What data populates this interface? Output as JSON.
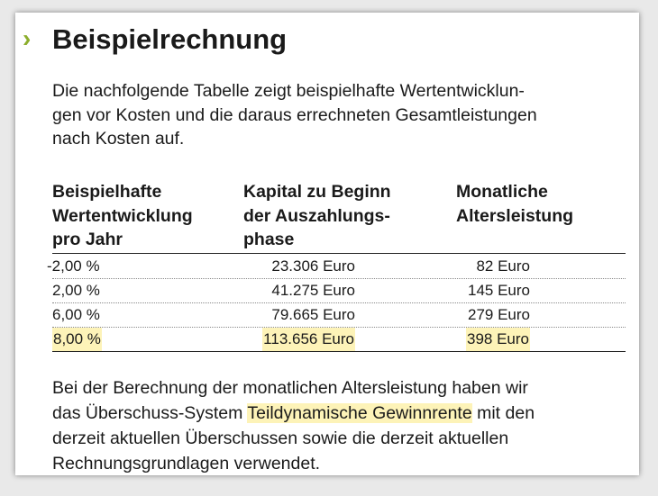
{
  "heading": {
    "chevron": "›",
    "title": "Beispielrechnung"
  },
  "intro": [
    "Die nachfolgende Tabelle zeigt beispielhafte Wertentwicklun-",
    "gen vor Kosten und die daraus errechneten Gesamtleistungen",
    "nach Kosten auf."
  ],
  "table": {
    "headers": [
      [
        "Beispielhafte",
        "Wertentwicklung",
        "pro Jahr"
      ],
      [
        "Kapital zu Beginn",
        "der Auszahlungs-",
        "phase"
      ],
      [
        "Monatliche",
        "Altersleistung"
      ]
    ],
    "rows": [
      {
        "rate": "-2,00 %",
        "capital": "23.306 Euro",
        "pension": "82 Euro",
        "highlighted": false
      },
      {
        "rate": "2,00 %",
        "capital": "41.275 Euro",
        "pension": "145 Euro",
        "highlighted": false
      },
      {
        "rate": "6,00 %",
        "capital": "79.665 Euro",
        "pension": "279 Euro",
        "highlighted": false
      },
      {
        "rate": "8,00 %",
        "capital": "113.656 Euro",
        "pension": "398 Euro",
        "highlighted": true
      }
    ]
  },
  "outro": {
    "line1": "Bei der Berechnung der monatlichen Altersleistung haben wir",
    "line2_before": "das Überschuss-System ",
    "line2_highlight": "Teildynamische Gewinnrente",
    "line2_after": " mit den",
    "line3": "derzeit aktuellen Überschussen sowie die derzeit aktuellen",
    "line4": "Rechnungsgrundlagen verwendet."
  },
  "colors": {
    "accent": "#8cae2c",
    "highlight": "#fdf3b8"
  }
}
